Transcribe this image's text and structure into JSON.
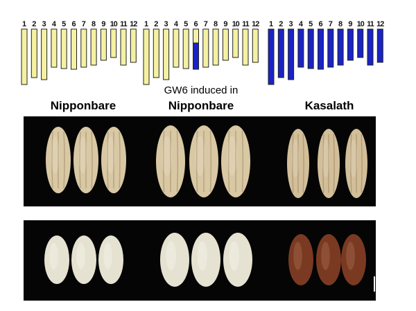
{
  "chromosome_labels": [
    "1",
    "2",
    "3",
    "4",
    "5",
    "6",
    "7",
    "8",
    "9",
    "10",
    "11",
    "12"
  ],
  "panels": [
    {
      "id": "nipponbare",
      "label_lines": [
        "Nipponbare"
      ]
    },
    {
      "id": "gw6-induced",
      "label_lines": [
        "GW6 induced in",
        "Nipponbare"
      ]
    },
    {
      "id": "kasalath",
      "label_lines": [
        "Kasalath"
      ]
    }
  ],
  "colors": {
    "nipponbare_chromosome": "#f4f1a2",
    "kasalath_chromosome": "#1a23c4",
    "chromosome_outline": "#222222",
    "paddy_grain": "#d9c8a4",
    "brown_rice_japonica": "#e6e2d2",
    "brown_rice_kasalath": "#7a3a22",
    "background_photo": "#050505"
  }
}
